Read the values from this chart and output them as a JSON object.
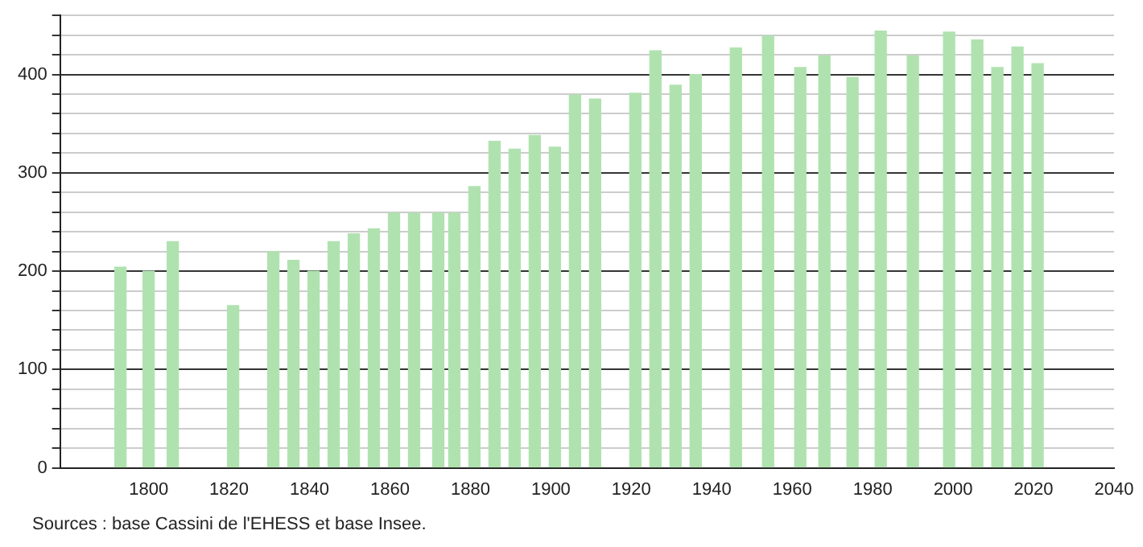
{
  "chart_data": {
    "type": "bar",
    "x": [
      1793,
      1800,
      1806,
      1821,
      1831,
      1836,
      1841,
      1846,
      1851,
      1856,
      1861,
      1866,
      1872,
      1876,
      1881,
      1886,
      1891,
      1896,
      1901,
      1906,
      1911,
      1921,
      1926,
      1931,
      1936,
      1946,
      1954,
      1962,
      1968,
      1975,
      1982,
      1990,
      1999,
      2006,
      2011,
      2016,
      2021
    ],
    "values": [
      204,
      200,
      230,
      165,
      220,
      211,
      200,
      230,
      238,
      243,
      259,
      259,
      259,
      259,
      286,
      332,
      324,
      338,
      326,
      379,
      375,
      381,
      424,
      389,
      400,
      427,
      439,
      407,
      419,
      397,
      444,
      419,
      443,
      435,
      407,
      428,
      411
    ],
    "color": "#b0e2b0",
    "xlim": [
      1778,
      2040
    ],
    "xticks": [
      1800,
      1820,
      1840,
      1860,
      1880,
      1900,
      1920,
      1940,
      1960,
      1980,
      2000,
      2020,
      2040
    ],
    "ylim": [
      0,
      460
    ],
    "yticks": [
      0,
      {
        "value": 20,
        "label": null
      },
      {
        "value": 40,
        "label": null
      },
      {
        "value": 60,
        "label": null
      },
      {
        "value": 80,
        "label": null
      },
      100,
      {
        "value": 120,
        "label": null
      },
      {
        "value": 140,
        "label": null
      },
      {
        "value": 160,
        "label": null
      },
      {
        "value": 180,
        "label": null
      },
      200,
      {
        "value": 220,
        "label": null
      },
      {
        "value": 240,
        "label": null
      },
      {
        "value": 260,
        "label": null
      },
      {
        "value": 280,
        "label": null
      },
      300,
      {
        "value": 320,
        "label": null
      },
      {
        "value": 340,
        "label": null
      },
      {
        "value": 360,
        "label": null
      },
      {
        "value": 380,
        "label": null
      },
      400,
      {
        "value": 420,
        "label": null
      },
      {
        "value": 440,
        "label": null
      },
      {
        "value": 460,
        "label": null
      }
    ],
    "grid": "y",
    "legend": false,
    "annotations": [
      "Sources : base Cassini de l'EHESS et base Insee."
    ]
  }
}
